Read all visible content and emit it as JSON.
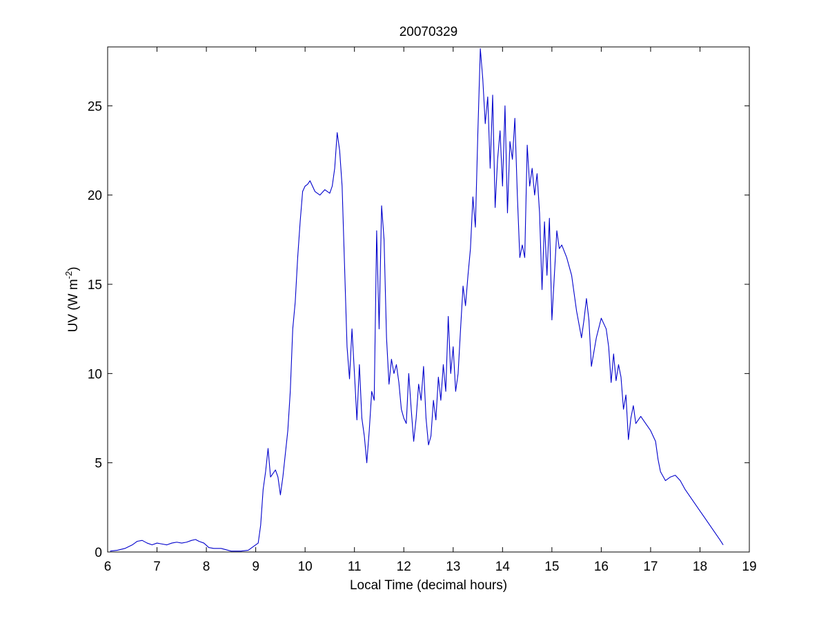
{
  "chart_data": {
    "type": "line",
    "title": "20070329",
    "xlabel": "Local Time (decimal hours)",
    "ylabel": {
      "prefix": "UV (W m",
      "superscript": "-2",
      "suffix": ")"
    },
    "xlim": [
      6,
      19
    ],
    "ylim": [
      0,
      28.3
    ],
    "xticks": [
      6,
      7,
      8,
      9,
      10,
      11,
      12,
      13,
      14,
      15,
      16,
      17,
      18,
      19
    ],
    "yticks": [
      0,
      5,
      10,
      15,
      20,
      25
    ],
    "grid": false,
    "line_color": "#0000cc",
    "series": [
      {
        "x": [
          6.05,
          6.2,
          6.35,
          6.5,
          6.6,
          6.7,
          6.8,
          6.9,
          7.0,
          7.1,
          7.2,
          7.3,
          7.4,
          7.5,
          7.6,
          7.7,
          7.78,
          7.85,
          7.95,
          8.05,
          8.15,
          8.3,
          8.5,
          8.7,
          8.85,
          8.95,
          9.05,
          9.1,
          9.15,
          9.2,
          9.25,
          9.3,
          9.35,
          9.4,
          9.45,
          9.5,
          9.55,
          9.6,
          9.65,
          9.7,
          9.75,
          9.8,
          9.85,
          9.9,
          9.95,
          10.0,
          10.05,
          10.1,
          10.2,
          10.3,
          10.4,
          10.5,
          10.55,
          10.6,
          10.65,
          10.7,
          10.75,
          10.8,
          10.85,
          10.9,
          10.95,
          11.0,
          11.05,
          11.1,
          11.15,
          11.2,
          11.25,
          11.3,
          11.35,
          11.4,
          11.45,
          11.5,
          11.55,
          11.6,
          11.65,
          11.7,
          11.75,
          11.8,
          11.85,
          11.9,
          11.95,
          12.0,
          12.05,
          12.1,
          12.15,
          12.2,
          12.25,
          12.3,
          12.35,
          12.4,
          12.45,
          12.5,
          12.55,
          12.6,
          12.65,
          12.7,
          12.75,
          12.8,
          12.85,
          12.9,
          12.95,
          13.0,
          13.05,
          13.1,
          13.15,
          13.2,
          13.25,
          13.3,
          13.35,
          13.4,
          13.45,
          13.5,
          13.55,
          13.6,
          13.65,
          13.7,
          13.75,
          13.8,
          13.85,
          13.9,
          13.95,
          14.0,
          14.05,
          14.1,
          14.15,
          14.2,
          14.25,
          14.3,
          14.35,
          14.4,
          14.45,
          14.5,
          14.55,
          14.6,
          14.65,
          14.7,
          14.75,
          14.8,
          14.85,
          14.9,
          14.95,
          15.0,
          15.05,
          15.1,
          15.15,
          15.2,
          15.3,
          15.4,
          15.5,
          15.6,
          15.65,
          15.7,
          15.75,
          15.8,
          15.9,
          16.0,
          16.05,
          16.1,
          16.15,
          16.2,
          16.25,
          16.3,
          16.35,
          16.4,
          16.45,
          16.5,
          16.55,
          16.6,
          16.65,
          16.7,
          16.8,
          16.9,
          17.0,
          17.05,
          17.1,
          17.15,
          17.2,
          17.3,
          17.4,
          17.5,
          17.6,
          17.7,
          17.8,
          17.9,
          18.0,
          18.1,
          18.2,
          18.3,
          18.4,
          18.47
        ],
        "y": [
          0.05,
          0.1,
          0.2,
          0.4,
          0.6,
          0.65,
          0.5,
          0.4,
          0.5,
          0.45,
          0.4,
          0.5,
          0.55,
          0.5,
          0.55,
          0.65,
          0.7,
          0.6,
          0.5,
          0.25,
          0.2,
          0.2,
          0.05,
          0.05,
          0.1,
          0.3,
          0.5,
          1.5,
          3.5,
          4.5,
          5.8,
          4.2,
          4.4,
          4.6,
          4.2,
          3.2,
          4.2,
          5.5,
          6.8,
          9.0,
          12.5,
          14.0,
          16.5,
          18.5,
          20.2,
          20.5,
          20.6,
          20.8,
          20.2,
          20.0,
          20.3,
          20.1,
          20.5,
          21.5,
          23.5,
          22.5,
          20.5,
          16.0,
          11.5,
          9.7,
          12.5,
          10.0,
          7.4,
          10.5,
          7.5,
          6.5,
          5.0,
          6.8,
          9.0,
          8.5,
          18.0,
          12.5,
          19.4,
          17.5,
          12.0,
          9.4,
          10.8,
          10.0,
          10.5,
          9.5,
          8.0,
          7.5,
          7.2,
          10.0,
          8.0,
          6.2,
          7.5,
          9.4,
          8.5,
          10.4,
          7.5,
          6.0,
          6.5,
          8.5,
          7.4,
          9.8,
          8.5,
          10.5,
          9.0,
          13.2,
          10.0,
          11.5,
          9.0,
          10.0,
          12.5,
          14.9,
          13.8,
          15.5,
          17.0,
          19.9,
          18.2,
          23.5,
          28.2,
          26.5,
          24.0,
          25.5,
          21.5,
          25.6,
          19.3,
          22.0,
          23.6,
          20.5,
          25.0,
          19.0,
          23.0,
          22.0,
          24.3,
          20.0,
          16.5,
          17.2,
          16.5,
          22.8,
          20.5,
          21.5,
          20.0,
          21.2,
          19.0,
          14.7,
          18.5,
          15.5,
          18.7,
          13.0,
          15.5,
          18.0,
          17.0,
          17.2,
          16.5,
          15.5,
          13.5,
          12.0,
          13.0,
          14.2,
          13.0,
          10.4,
          12.0,
          13.1,
          12.8,
          12.5,
          11.5,
          9.5,
          11.1,
          9.6,
          10.5,
          9.8,
          8.0,
          8.8,
          6.3,
          7.5,
          8.2,
          7.2,
          7.6,
          7.2,
          6.8,
          6.5,
          6.2,
          5.2,
          4.5,
          4.0,
          4.2,
          4.3,
          4.0,
          3.5,
          3.1,
          2.7,
          2.3,
          1.9,
          1.5,
          1.1,
          0.7,
          0.4
        ]
      }
    ]
  }
}
